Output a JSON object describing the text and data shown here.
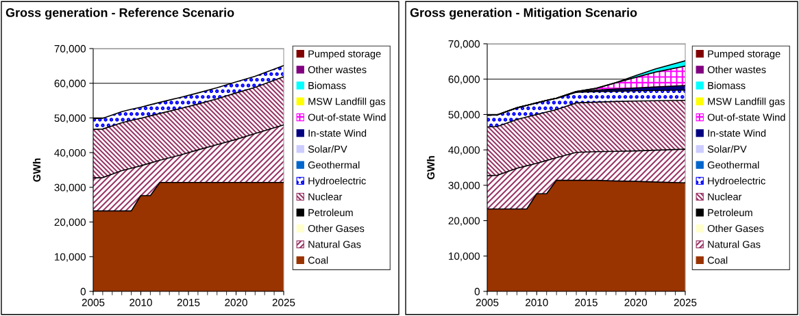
{
  "chart_data": [
    {
      "type": "area",
      "stacked": true,
      "title": "Gross generation - Reference Scenario",
      "ylabel": "GWh",
      "legend": "right",
      "grid": "y",
      "x": [
        2005,
        2006,
        2008,
        2009,
        2010,
        2011,
        2012,
        2014,
        2016,
        2018,
        2020,
        2022,
        2025
      ],
      "xlim": [
        2005,
        2025
      ],
      "xticks": [
        2005,
        2010,
        2015,
        2020,
        2025
      ],
      "ylim": [
        0,
        70000
      ],
      "yticks": [
        {
          "value": 0,
          "label": "0"
        },
        {
          "value": 10000,
          "label": "10,000"
        },
        {
          "value": 20000,
          "label": "20,000"
        },
        {
          "value": 30000,
          "label": "30,000"
        },
        {
          "value": 40000,
          "label": "40,000"
        },
        {
          "value": 50000,
          "label": "50,000"
        },
        {
          "value": 60000,
          "label": "60,000"
        },
        {
          "value": 70000,
          "label": "70,000"
        }
      ],
      "series": [
        {
          "name": "Coal",
          "color": "#993300",
          "values": [
            23200,
            23200,
            23200,
            23200,
            27600,
            27600,
            31400,
            31400,
            31400,
            31400,
            31400,
            31400,
            31400
          ]
        },
        {
          "name": "Natural Gas",
          "color": "#993366",
          "values": [
            9500,
            9600,
            11600,
            12300,
            8600,
            9400,
            6400,
            7800,
            9400,
            10900,
            12400,
            14100,
            16600
          ]
        },
        {
          "name": "Other Gases",
          "color": "#ffffcc",
          "values": [
            null,
            null,
            null,
            null,
            null,
            null,
            null,
            null,
            null,
            null,
            null,
            null,
            null
          ]
        },
        {
          "name": "Petroleum",
          "color": "#000000",
          "values": [
            null,
            null,
            null,
            null,
            null,
            null,
            null,
            null,
            null,
            null,
            null,
            null,
            null
          ]
        },
        {
          "name": "Nuclear",
          "color": "#993366",
          "values": [
            14000,
            14000,
            13800,
            13800,
            13700,
            13600,
            13500,
            13400,
            13200,
            13200,
            13400,
            13300,
            13900
          ]
        },
        {
          "name": "Hydroelectric",
          "color": "#0000ff",
          "values": [
            3100,
            3100,
            3200,
            3200,
            3200,
            3200,
            3200,
            3200,
            3200,
            3200,
            3200,
            3200,
            3200
          ]
        },
        {
          "name": "Geothermal",
          "color": "#0066cc",
          "values": [
            null,
            null,
            null,
            null,
            null,
            null,
            null,
            null,
            null,
            null,
            null,
            null,
            null
          ]
        },
        {
          "name": "Solar/PV",
          "color": "#ccccff",
          "values": [
            null,
            null,
            null,
            null,
            null,
            null,
            null,
            null,
            null,
            null,
            null,
            null,
            null
          ]
        },
        {
          "name": "In-state Wind",
          "color": "#000080",
          "values": [
            null,
            null,
            null,
            null,
            null,
            null,
            null,
            null,
            null,
            null,
            null,
            null,
            null
          ]
        },
        {
          "name": "Out-of-state Wind",
          "color": "#ff00ff",
          "values": [
            null,
            null,
            null,
            null,
            null,
            null,
            null,
            null,
            null,
            null,
            null,
            null,
            null
          ]
        },
        {
          "name": "MSW Landfill gas",
          "color": "#ffff00",
          "values": [
            null,
            null,
            null,
            null,
            null,
            null,
            null,
            null,
            null,
            null,
            null,
            null,
            null
          ]
        },
        {
          "name": "Biomass",
          "color": "#00ffff",
          "values": [
            null,
            null,
            null,
            null,
            null,
            null,
            null,
            null,
            null,
            null,
            null,
            null,
            null
          ]
        },
        {
          "name": "Other wastes",
          "color": "#800080",
          "values": [
            null,
            null,
            null,
            null,
            null,
            null,
            null,
            null,
            null,
            null,
            null,
            null,
            null
          ]
        },
        {
          "name": "Pumped storage",
          "color": "#800000",
          "values": [
            null,
            null,
            null,
            null,
            null,
            null,
            null,
            null,
            null,
            null,
            null,
            null,
            null
          ]
        }
      ]
    },
    {
      "type": "area",
      "stacked": true,
      "title": "Gross generation - Mitigation Scenario",
      "ylabel": "GWh",
      "legend": "right",
      "grid": "y",
      "x": [
        2005,
        2006,
        2008,
        2009,
        2010,
        2011,
        2012,
        2014,
        2016,
        2018,
        2020,
        2022,
        2025
      ],
      "xlim": [
        2005,
        2025
      ],
      "xticks": [
        2005,
        2010,
        2015,
        2020,
        2025
      ],
      "ylim": [
        0,
        70000
      ],
      "yticks": [
        {
          "value": 0,
          "label": "0"
        },
        {
          "value": 10000,
          "label": "10,000"
        },
        {
          "value": 20000,
          "label": "20,000"
        },
        {
          "value": 30000,
          "label": "30,000"
        },
        {
          "value": 40000,
          "label": "40,000"
        },
        {
          "value": 50000,
          "label": "50,000"
        },
        {
          "value": 60000,
          "label": "60,000"
        },
        {
          "value": 70000,
          "label": "70,000"
        }
      ],
      "series": [
        {
          "name": "Coal",
          "color": "#993300",
          "values": [
            23300,
            23300,
            23300,
            23300,
            27600,
            27600,
            31400,
            31400,
            31400,
            31200,
            31100,
            30900,
            30700
          ]
        },
        {
          "name": "Natural Gas",
          "color": "#993366",
          "values": [
            9400,
            9500,
            11500,
            12200,
            8600,
            9400,
            6400,
            7900,
            8100,
            8400,
            8600,
            9000,
            9500
          ]
        },
        {
          "name": "Other Gases",
          "color": "#ffffcc",
          "values": [
            null,
            null,
            null,
            null,
            null,
            null,
            null,
            null,
            null,
            null,
            null,
            null,
            null
          ]
        },
        {
          "name": "Petroleum",
          "color": "#000000",
          "values": [
            null,
            null,
            null,
            null,
            null,
            null,
            null,
            null,
            null,
            null,
            null,
            null,
            null
          ]
        },
        {
          "name": "Nuclear",
          "color": "#993366",
          "values": [
            13800,
            13800,
            13800,
            13800,
            13800,
            13700,
            13600,
            14000,
            14000,
            14100,
            14100,
            14000,
            13800
          ]
        },
        {
          "name": "Hydroelectric",
          "color": "#0000ff",
          "values": [
            3300,
            3300,
            3300,
            3300,
            3300,
            3300,
            3200,
            3000,
            3000,
            2900,
            2900,
            2900,
            2900
          ]
        },
        {
          "name": "Geothermal",
          "color": "#0066cc",
          "values": [
            null,
            null,
            null,
            null,
            null,
            null,
            null,
            null,
            null,
            null,
            null,
            null,
            null
          ]
        },
        {
          "name": "Solar/PV",
          "color": "#ccccff",
          "values": [
            null,
            null,
            null,
            null,
            null,
            null,
            null,
            null,
            null,
            null,
            null,
            null,
            null
          ]
        },
        {
          "name": "In-state Wind",
          "color": "#000080",
          "values": [
            0,
            0,
            0,
            0,
            0,
            0,
            0,
            200,
            400,
            600,
            800,
            1000,
            1300
          ]
        },
        {
          "name": "Out-of-state Wind",
          "color": "#ff00ff",
          "values": [
            0,
            0,
            0,
            0,
            0,
            0,
            0,
            0,
            500,
            1800,
            3000,
            4200,
            5500
          ]
        },
        {
          "name": "MSW Landfill gas",
          "color": "#ffff00",
          "values": [
            null,
            null,
            null,
            null,
            null,
            null,
            null,
            null,
            null,
            null,
            null,
            null,
            null
          ]
        },
        {
          "name": "Biomass",
          "color": "#00ffff",
          "values": [
            0,
            0,
            0,
            0,
            0,
            0,
            0,
            0,
            0,
            0,
            500,
            900,
            1500
          ]
        },
        {
          "name": "Other wastes",
          "color": "#800080",
          "values": [
            null,
            null,
            null,
            null,
            null,
            null,
            null,
            null,
            null,
            null,
            null,
            null,
            null
          ]
        },
        {
          "name": "Pumped storage",
          "color": "#800000",
          "values": [
            null,
            null,
            null,
            null,
            null,
            null,
            null,
            null,
            null,
            null,
            null,
            null,
            null
          ]
        }
      ]
    }
  ]
}
